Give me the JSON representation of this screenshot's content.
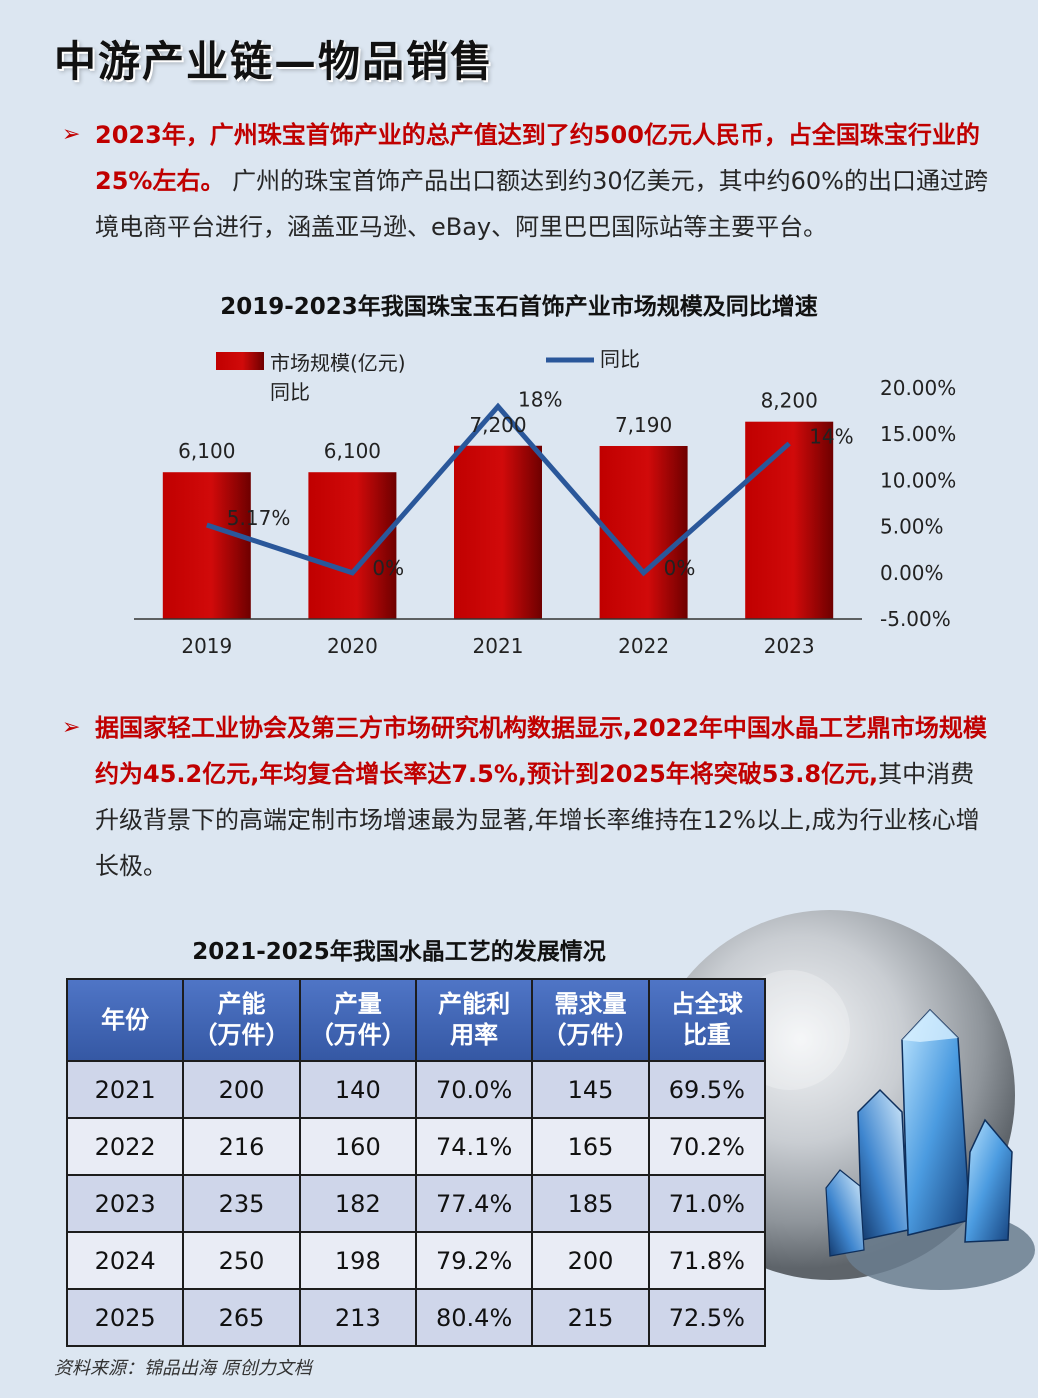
{
  "page": {
    "title": "中游产业链—物品销售",
    "source": "资料来源：锦品出海 原创力文档"
  },
  "bullets": [
    {
      "arrow": "➢",
      "bold": "2023年，广州珠宝首饰产业的总产值达到了约500亿元人民币，占全国珠宝行业的25%左右。",
      "normal": " 广州的珠宝首饰产品出口额达到约30亿美元，其中约60%的出口通过跨境电商平台进行，涵盖亚马逊、eBay、阿里巴巴国际站等主要平台。"
    },
    {
      "arrow": "➢",
      "normal_1": "据国家轻工业协会及第三方市场研究机构数据显示,",
      "bold": "2022年中国水晶工艺鼎市场规模约为45.2亿元,年均复合增长率达7.5%,预计到2025年将突破53.8亿元,",
      "normal_2": "其中消费升级背景下的高端定制市场增速最为显著,年增长率维持在12%以上,成为行业核心增长极。"
    }
  ],
  "chart_data": {
    "type": "bar",
    "title": "2019-2023年我国珠宝玉石首饰产业市场规模及同比增速",
    "categories": [
      "2019",
      "2020",
      "2021",
      "2022",
      "2023"
    ],
    "series": [
      {
        "name": "市场规模(亿元)",
        "type": "bar",
        "axis": "left",
        "values": [
          6100,
          6100,
          7200,
          7190,
          8200
        ],
        "labels": [
          "6,100",
          "6,100",
          "7,200",
          "7,190",
          "8,200"
        ],
        "color": "#c00000"
      },
      {
        "name": "同比",
        "type": "line",
        "axis": "right",
        "values": [
          5.17,
          0,
          18,
          0,
          14
        ],
        "labels": [
          "5.17%",
          "0%",
          "18%",
          "0%",
          "14%"
        ],
        "color": "#2a579a"
      }
    ],
    "legend_extra": "同比",
    "ylim_left": [
      0,
      9600
    ],
    "ylim_right": [
      -5,
      20
    ],
    "right_ticks": [
      "20.00%",
      "15.00%",
      "10.00%",
      "5.00%",
      "0.00%",
      "-5.00%"
    ],
    "right_tick_values": [
      20,
      15,
      10,
      5,
      0,
      -5
    ],
    "legend_position": "top",
    "grid": false
  },
  "table": {
    "title": "2021-2025年我国水晶工艺的发展情况",
    "headers": [
      [
        "年份"
      ],
      [
        "产能",
        "（万件）"
      ],
      [
        "产量",
        "（万件）"
      ],
      [
        "产能利",
        "用率"
      ],
      [
        "需求量",
        "（万件）"
      ],
      [
        "占全球",
        "比重"
      ]
    ],
    "rows": [
      [
        "2021",
        "200",
        "140",
        "70.0%",
        "145",
        "69.5%"
      ],
      [
        "2022",
        "216",
        "160",
        "74.1%",
        "165",
        "70.2%"
      ],
      [
        "2023",
        "235",
        "182",
        "77.4%",
        "185",
        "71.0%"
      ],
      [
        "2024",
        "250",
        "198",
        "79.2%",
        "200",
        "71.8%"
      ],
      [
        "2025",
        "265",
        "213",
        "80.4%",
        "215",
        "72.5%"
      ]
    ]
  },
  "colors": {
    "accent_red": "#c00000",
    "line_blue": "#2a579a",
    "table_header": "#4066b5",
    "background": "#dce6f1"
  }
}
